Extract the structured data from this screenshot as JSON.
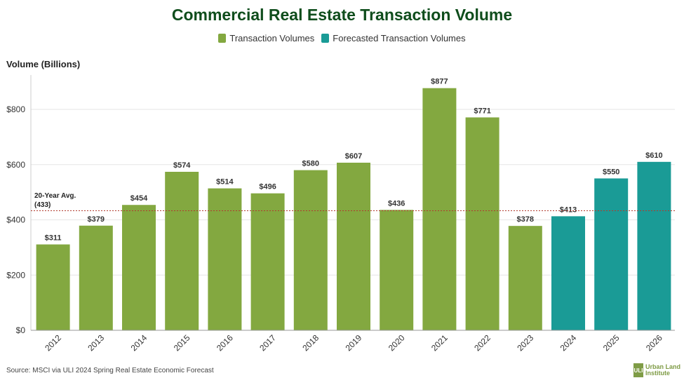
{
  "chart_data": {
    "type": "bar",
    "title": "Commercial Real Estate Transaction Volume",
    "ylabel": "Volume (Billions)",
    "categories": [
      "2012",
      "2013",
      "2014",
      "2015",
      "2016",
      "2017",
      "2018",
      "2019",
      "2020",
      "2021",
      "2022",
      "2023",
      "2024",
      "2025",
      "2026"
    ],
    "values": [
      311,
      379,
      454,
      574,
      514,
      496,
      580,
      607,
      436,
      877,
      771,
      378,
      413,
      550,
      610
    ],
    "data_labels": [
      "$311",
      "$379",
      "$454",
      "$574",
      "$514",
      "$496",
      "$580",
      "$607",
      "$436",
      "$877",
      "$771",
      "$378",
      "$413",
      "$550",
      "$610"
    ],
    "series_of_bar": [
      "actual",
      "actual",
      "actual",
      "actual",
      "actual",
      "actual",
      "actual",
      "actual",
      "actual",
      "actual",
      "actual",
      "actual",
      "forecast",
      "forecast",
      "forecast"
    ],
    "legend": [
      {
        "key": "actual",
        "label": "Transaction Volumes",
        "color": "#83a840"
      },
      {
        "key": "forecast",
        "label": "Forecasted Transaction Volumes",
        "color": "#1a9b96"
      }
    ],
    "legend_position": "top-center",
    "ylim": [
      0,
      900
    ],
    "yticks": [
      0,
      200,
      400,
      600,
      800
    ],
    "ytick_labels": [
      "$0",
      "$200",
      "$400",
      "$600",
      "$800"
    ],
    "grid": true,
    "reference_line": {
      "value": 433,
      "label_line1": "20-Year Avg.",
      "label_line2": "(433)",
      "color": "#b03a2e"
    }
  },
  "source": "Source: MSCI via ULI 2024 Spring Real Estate Economic Forecast",
  "logo": {
    "mark": "ULI",
    "line1": "Urban Land",
    "line2": "Institute"
  }
}
